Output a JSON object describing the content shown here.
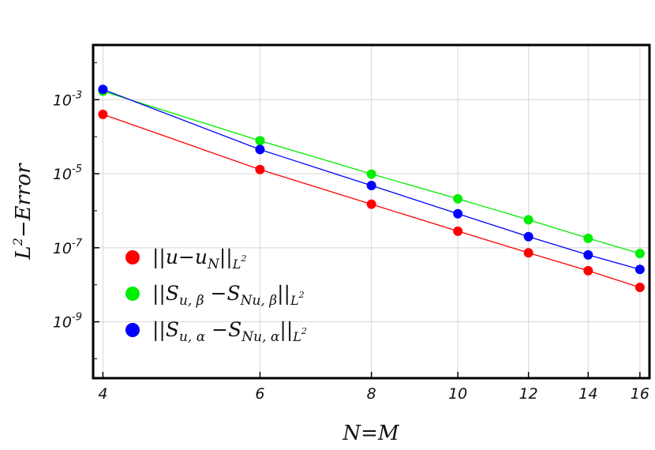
{
  "chart_data": {
    "type": "line",
    "xlabel": "N=M",
    "ylabel": "L²−Error",
    "x_scale": "log",
    "y_scale": "log",
    "x": [
      4,
      6,
      8,
      10,
      12,
      14,
      16
    ],
    "x_tick_labels": [
      "4",
      "6",
      "8",
      "10",
      "12",
      "14",
      "16"
    ],
    "y_ticks": [
      {
        "value": 0.001,
        "base": "10",
        "exp": "-3"
      },
      {
        "value": 1e-05,
        "base": "10",
        "exp": "-5"
      },
      {
        "value": 1e-07,
        "base": "10",
        "exp": "-7"
      },
      {
        "value": 1e-09,
        "base": "10",
        "exp": "-9"
      }
    ],
    "ylim": [
      3e-11,
      0.03
    ],
    "xlim": [
      3.9,
      16.4
    ],
    "grid": true,
    "legend_position": "bottom-left",
    "series": [
      {
        "name": "||u−u_N||_{L²}",
        "color": "#ff0000",
        "values": [
          0.0004,
          1.3e-05,
          1.5e-06,
          2.8e-07,
          7.3e-08,
          2.4e-08,
          8.5e-09
        ]
      },
      {
        "name": "||S_{u,β}−S_{Nu,β}||_{L²}",
        "color": "#00ee00",
        "values": [
          0.0017,
          7.8e-05,
          9.8e-06,
          2.1e-06,
          5.7e-07,
          1.8e-07,
          7e-08
        ]
      },
      {
        "name": "||S_{u,α}−S_{Nu,α}||_{L²}",
        "color": "#0000ff",
        "values": [
          0.0019,
          4.5e-05,
          4.8e-06,
          8.3e-07,
          2e-07,
          6.4e-08,
          2.6e-08
        ]
      }
    ]
  }
}
